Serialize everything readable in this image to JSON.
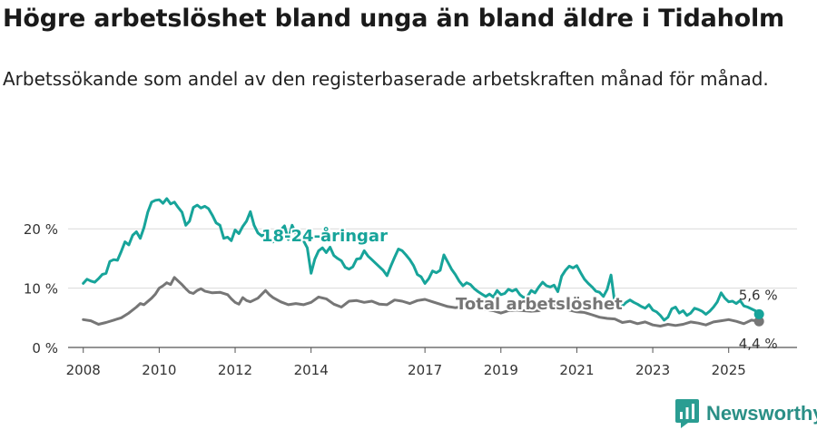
{
  "title": "Högre arbetslöshet bland unga än bland äldre i Tidaholm",
  "subtitle": "Arbetssökande som andel av den registerbaserade arbetskraften månad för månad.",
  "brand": {
    "name": "Newsworthy",
    "icon": "newsworthy-logo-icon",
    "color": "#2a9d92"
  },
  "chart_data": {
    "type": "line",
    "x_unit": "year",
    "xlim": [
      2007.6,
      2026.8
    ],
    "ylim": [
      0,
      26
    ],
    "grid": true,
    "y_ticks": [
      {
        "value": 0,
        "label": "0 %"
      },
      {
        "value": 10,
        "label": "10 %"
      },
      {
        "value": 20,
        "label": "20 %"
      }
    ],
    "x_ticks": [
      {
        "value": 2008,
        "label": "2008"
      },
      {
        "value": 2010,
        "label": "2010"
      },
      {
        "value": 2012,
        "label": "2012"
      },
      {
        "value": 2014,
        "label": "2014"
      },
      {
        "value": 2017,
        "label": "2017"
      },
      {
        "value": 2019,
        "label": "2019"
      },
      {
        "value": 2021,
        "label": "2021"
      },
      {
        "value": 2023,
        "label": "2023"
      },
      {
        "value": 2025,
        "label": "2025"
      }
    ],
    "series": [
      {
        "name": "Total arbetslöshet",
        "label": "Total arbetslöshet",
        "color": "#767676",
        "end_label": "4,4 %",
        "points": [
          [
            2008.0,
            4.7
          ],
          [
            2008.2,
            4.5
          ],
          [
            2008.4,
            3.9
          ],
          [
            2008.6,
            4.2
          ],
          [
            2008.8,
            4.6
          ],
          [
            2009.0,
            5.0
          ],
          [
            2009.2,
            5.8
          ],
          [
            2009.4,
            6.8
          ],
          [
            2009.5,
            7.4
          ],
          [
            2009.6,
            7.2
          ],
          [
            2009.8,
            8.3
          ],
          [
            2009.9,
            9.0
          ],
          [
            2010.0,
            10.0
          ],
          [
            2010.1,
            10.4
          ],
          [
            2010.2,
            10.9
          ],
          [
            2010.3,
            10.6
          ],
          [
            2010.4,
            11.8
          ],
          [
            2010.5,
            11.2
          ],
          [
            2010.6,
            10.6
          ],
          [
            2010.7,
            9.9
          ],
          [
            2010.8,
            9.3
          ],
          [
            2010.9,
            9.1
          ],
          [
            2011.0,
            9.6
          ],
          [
            2011.1,
            9.9
          ],
          [
            2011.2,
            9.5
          ],
          [
            2011.4,
            9.2
          ],
          [
            2011.6,
            9.3
          ],
          [
            2011.8,
            8.9
          ],
          [
            2011.9,
            8.2
          ],
          [
            2012.0,
            7.6
          ],
          [
            2012.1,
            7.3
          ],
          [
            2012.2,
            8.4
          ],
          [
            2012.3,
            7.9
          ],
          [
            2012.4,
            7.7
          ],
          [
            2012.6,
            8.3
          ],
          [
            2012.8,
            9.6
          ],
          [
            2012.9,
            8.9
          ],
          [
            2013.0,
            8.4
          ],
          [
            2013.2,
            7.7
          ],
          [
            2013.4,
            7.2
          ],
          [
            2013.6,
            7.4
          ],
          [
            2013.8,
            7.2
          ],
          [
            2014.0,
            7.6
          ],
          [
            2014.2,
            8.5
          ],
          [
            2014.4,
            8.2
          ],
          [
            2014.6,
            7.3
          ],
          [
            2014.8,
            6.8
          ],
          [
            2015.0,
            7.8
          ],
          [
            2015.2,
            7.9
          ],
          [
            2015.4,
            7.6
          ],
          [
            2015.6,
            7.8
          ],
          [
            2015.8,
            7.3
          ],
          [
            2016.0,
            7.2
          ],
          [
            2016.2,
            8.0
          ],
          [
            2016.4,
            7.8
          ],
          [
            2016.6,
            7.4
          ],
          [
            2016.8,
            7.9
          ],
          [
            2017.0,
            8.1
          ],
          [
            2017.2,
            7.7
          ],
          [
            2017.4,
            7.3
          ],
          [
            2017.6,
            6.9
          ],
          [
            2017.8,
            6.7
          ],
          [
            2018.0,
            6.9
          ],
          [
            2018.2,
            7.5
          ],
          [
            2018.4,
            6.9
          ],
          [
            2018.6,
            6.4
          ],
          [
            2018.8,
            6.2
          ],
          [
            2019.0,
            5.8
          ],
          [
            2019.2,
            6.2
          ],
          [
            2019.4,
            6.3
          ],
          [
            2019.6,
            6.2
          ],
          [
            2019.8,
            6.1
          ],
          [
            2020.0,
            6.2
          ],
          [
            2020.2,
            6.8
          ],
          [
            2020.4,
            7.3
          ],
          [
            2020.6,
            6.9
          ],
          [
            2020.8,
            6.3
          ],
          [
            2021.0,
            6.0
          ],
          [
            2021.2,
            5.9
          ],
          [
            2021.4,
            5.5
          ],
          [
            2021.6,
            5.1
          ],
          [
            2021.8,
            4.9
          ],
          [
            2022.0,
            4.8
          ],
          [
            2022.2,
            4.2
          ],
          [
            2022.4,
            4.4
          ],
          [
            2022.6,
            4.0
          ],
          [
            2022.8,
            4.3
          ],
          [
            2023.0,
            3.8
          ],
          [
            2023.2,
            3.6
          ],
          [
            2023.4,
            3.9
          ],
          [
            2023.6,
            3.7
          ],
          [
            2023.8,
            3.9
          ],
          [
            2024.0,
            4.3
          ],
          [
            2024.2,
            4.1
          ],
          [
            2024.4,
            3.8
          ],
          [
            2024.6,
            4.3
          ],
          [
            2024.8,
            4.5
          ],
          [
            2025.0,
            4.7
          ],
          [
            2025.2,
            4.4
          ],
          [
            2025.4,
            4.0
          ],
          [
            2025.6,
            4.6
          ],
          [
            2025.8,
            4.4
          ]
        ]
      },
      {
        "name": "18-24-åringar",
        "label": "18-24-åringar",
        "color": "#17a49a",
        "end_label": "5,6 %",
        "points": [
          [
            2008.0,
            10.8
          ],
          [
            2008.1,
            11.5
          ],
          [
            2008.2,
            11.2
          ],
          [
            2008.3,
            11.0
          ],
          [
            2008.4,
            11.6
          ],
          [
            2008.5,
            12.3
          ],
          [
            2008.6,
            12.5
          ],
          [
            2008.7,
            14.5
          ],
          [
            2008.8,
            14.8
          ],
          [
            2008.9,
            14.7
          ],
          [
            2009.0,
            16.2
          ],
          [
            2009.1,
            17.8
          ],
          [
            2009.2,
            17.3
          ],
          [
            2009.3,
            18.9
          ],
          [
            2009.4,
            19.5
          ],
          [
            2009.5,
            18.4
          ],
          [
            2009.6,
            20.2
          ],
          [
            2009.7,
            22.8
          ],
          [
            2009.8,
            24.5
          ],
          [
            2009.9,
            24.8
          ],
          [
            2010.0,
            24.9
          ],
          [
            2010.1,
            24.3
          ],
          [
            2010.2,
            25.1
          ],
          [
            2010.3,
            24.2
          ],
          [
            2010.4,
            24.5
          ],
          [
            2010.5,
            23.6
          ],
          [
            2010.6,
            22.8
          ],
          [
            2010.7,
            20.6
          ],
          [
            2010.8,
            21.3
          ],
          [
            2010.9,
            23.6
          ],
          [
            2011.0,
            24.0
          ],
          [
            2011.1,
            23.5
          ],
          [
            2011.2,
            23.8
          ],
          [
            2011.3,
            23.4
          ],
          [
            2011.4,
            22.3
          ],
          [
            2011.5,
            21.0
          ],
          [
            2011.6,
            20.6
          ],
          [
            2011.7,
            18.4
          ],
          [
            2011.8,
            18.6
          ],
          [
            2011.9,
            18.0
          ],
          [
            2012.0,
            19.8
          ],
          [
            2012.1,
            19.2
          ],
          [
            2012.2,
            20.4
          ],
          [
            2012.3,
            21.3
          ],
          [
            2012.4,
            22.9
          ],
          [
            2012.5,
            20.6
          ],
          [
            2012.6,
            19.3
          ],
          [
            2012.7,
            18.8
          ],
          [
            2012.8,
            19.3
          ],
          [
            2012.9,
            18.3
          ],
          [
            2013.0,
            17.8
          ],
          [
            2013.1,
            18.8
          ],
          [
            2013.2,
            19.8
          ],
          [
            2013.3,
            20.5
          ],
          [
            2013.4,
            18.2
          ],
          [
            2013.5,
            20.6
          ],
          [
            2013.6,
            19.2
          ],
          [
            2013.7,
            18.5
          ],
          [
            2013.8,
            18.0
          ],
          [
            2013.9,
            16.8
          ],
          [
            2014.0,
            12.5
          ],
          [
            2014.1,
            14.9
          ],
          [
            2014.2,
            16.3
          ],
          [
            2014.3,
            16.8
          ],
          [
            2014.4,
            16.0
          ],
          [
            2014.5,
            16.9
          ],
          [
            2014.6,
            15.5
          ],
          [
            2014.7,
            15.0
          ],
          [
            2014.8,
            14.6
          ],
          [
            2014.9,
            13.5
          ],
          [
            2015.0,
            13.2
          ],
          [
            2015.1,
            13.6
          ],
          [
            2015.2,
            14.9
          ],
          [
            2015.3,
            15.0
          ],
          [
            2015.4,
            16.3
          ],
          [
            2015.5,
            15.4
          ],
          [
            2015.6,
            14.8
          ],
          [
            2015.7,
            14.2
          ],
          [
            2015.8,
            13.6
          ],
          [
            2015.9,
            13.0
          ],
          [
            2016.0,
            12.1
          ],
          [
            2016.1,
            13.7
          ],
          [
            2016.2,
            15.2
          ],
          [
            2016.3,
            16.6
          ],
          [
            2016.4,
            16.3
          ],
          [
            2016.5,
            15.6
          ],
          [
            2016.6,
            14.8
          ],
          [
            2016.7,
            13.8
          ],
          [
            2016.8,
            12.3
          ],
          [
            2016.9,
            11.9
          ],
          [
            2017.0,
            10.8
          ],
          [
            2017.1,
            11.6
          ],
          [
            2017.2,
            12.9
          ],
          [
            2017.3,
            12.6
          ],
          [
            2017.4,
            13.0
          ],
          [
            2017.5,
            15.6
          ],
          [
            2017.6,
            14.4
          ],
          [
            2017.7,
            13.2
          ],
          [
            2017.8,
            12.3
          ],
          [
            2017.9,
            11.2
          ],
          [
            2018.0,
            10.4
          ],
          [
            2018.1,
            10.9
          ],
          [
            2018.2,
            10.6
          ],
          [
            2018.3,
            9.9
          ],
          [
            2018.4,
            9.4
          ],
          [
            2018.5,
            9.0
          ],
          [
            2018.6,
            8.6
          ],
          [
            2018.7,
            9.0
          ],
          [
            2018.8,
            8.5
          ],
          [
            2018.9,
            9.6
          ],
          [
            2019.0,
            8.9
          ],
          [
            2019.1,
            9.1
          ],
          [
            2019.2,
            9.8
          ],
          [
            2019.3,
            9.5
          ],
          [
            2019.4,
            9.8
          ],
          [
            2019.5,
            8.9
          ],
          [
            2019.6,
            8.4
          ],
          [
            2019.7,
            8.6
          ],
          [
            2019.8,
            9.6
          ],
          [
            2019.9,
            9.2
          ],
          [
            2020.0,
            10.2
          ],
          [
            2020.1,
            11.0
          ],
          [
            2020.2,
            10.4
          ],
          [
            2020.3,
            10.2
          ],
          [
            2020.4,
            10.5
          ],
          [
            2020.5,
            9.4
          ],
          [
            2020.6,
            12.0
          ],
          [
            2020.7,
            13.0
          ],
          [
            2020.8,
            13.7
          ],
          [
            2020.9,
            13.4
          ],
          [
            2021.0,
            13.8
          ],
          [
            2021.1,
            12.6
          ],
          [
            2021.2,
            11.5
          ],
          [
            2021.3,
            10.8
          ],
          [
            2021.4,
            10.2
          ],
          [
            2021.5,
            9.5
          ],
          [
            2021.6,
            9.3
          ],
          [
            2021.7,
            8.6
          ],
          [
            2021.8,
            9.8
          ],
          [
            2021.9,
            12.2
          ],
          [
            2022.0,
            7.4
          ],
          [
            2022.1,
            6.6
          ],
          [
            2022.2,
            7.0
          ],
          [
            2022.3,
            7.6
          ],
          [
            2022.4,
            8.0
          ],
          [
            2022.5,
            7.6
          ],
          [
            2022.6,
            7.3
          ],
          [
            2022.7,
            6.9
          ],
          [
            2022.8,
            6.6
          ],
          [
            2022.9,
            7.2
          ],
          [
            2023.0,
            6.3
          ],
          [
            2023.1,
            6.0
          ],
          [
            2023.2,
            5.4
          ],
          [
            2023.3,
            4.6
          ],
          [
            2023.4,
            5.1
          ],
          [
            2023.5,
            6.5
          ],
          [
            2023.6,
            6.8
          ],
          [
            2023.7,
            5.8
          ],
          [
            2023.8,
            6.2
          ],
          [
            2023.9,
            5.4
          ],
          [
            2024.0,
            5.8
          ],
          [
            2024.1,
            6.6
          ],
          [
            2024.2,
            6.4
          ],
          [
            2024.3,
            6.1
          ],
          [
            2024.4,
            5.6
          ],
          [
            2024.5,
            6.1
          ],
          [
            2024.6,
            6.8
          ],
          [
            2024.7,
            7.7
          ],
          [
            2024.8,
            9.2
          ],
          [
            2024.9,
            8.3
          ],
          [
            2025.0,
            7.7
          ],
          [
            2025.1,
            7.8
          ],
          [
            2025.2,
            7.4
          ],
          [
            2025.3,
            7.9
          ],
          [
            2025.4,
            7.0
          ],
          [
            2025.5,
            6.8
          ],
          [
            2025.6,
            6.5
          ],
          [
            2025.7,
            6.2
          ],
          [
            2025.8,
            5.6
          ]
        ]
      }
    ]
  }
}
